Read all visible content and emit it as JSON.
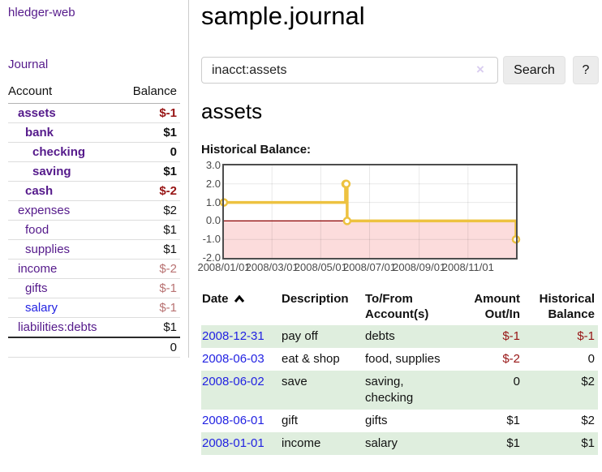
{
  "app": {
    "brand": "hledger-web"
  },
  "sidebar": {
    "journal_link": "Journal",
    "accounts": {
      "col_account": "Account",
      "col_balance": "Balance",
      "rows": [
        {
          "name": "assets",
          "indent": 1,
          "emph": true,
          "balance": "$-1",
          "neg": "strong"
        },
        {
          "name": "bank",
          "indent": 2,
          "emph": true,
          "balance": "$1",
          "neg": "none"
        },
        {
          "name": "checking",
          "indent": 3,
          "emph": true,
          "balance": "0",
          "neg": "none"
        },
        {
          "name": "saving",
          "indent": 3,
          "emph": true,
          "balance": "$1",
          "neg": "none"
        },
        {
          "name": "cash",
          "indent": 2,
          "emph": true,
          "balance": "$-2",
          "neg": "strong"
        },
        {
          "name": "expenses",
          "indent": 1,
          "emph": false,
          "balance": "$2",
          "neg": "none"
        },
        {
          "name": "food",
          "indent": 2,
          "emph": false,
          "balance": "$1",
          "neg": "none"
        },
        {
          "name": "supplies",
          "indent": 2,
          "emph": false,
          "balance": "$1",
          "neg": "none"
        },
        {
          "name": "income",
          "indent": 1,
          "emph": false,
          "balance": "$-2",
          "neg": "soft"
        },
        {
          "name": "gifts",
          "indent": 2,
          "emph": false,
          "balance": "$-1",
          "neg": "soft"
        },
        {
          "name": "salary",
          "indent": 2,
          "emph": false,
          "balance": "$-1",
          "neg": "soft",
          "link_color": "blue"
        },
        {
          "name": "liabilities:debts",
          "indent": 1,
          "emph": false,
          "balance": "$1",
          "neg": "none"
        }
      ],
      "total": "0"
    }
  },
  "main": {
    "title": "sample.journal",
    "search": {
      "value": "inacct:assets",
      "clear_icon": "×",
      "search_button": "Search",
      "help_button": "?"
    },
    "heading": "assets",
    "chart_label": "Historical Balance:"
  },
  "chart_data": {
    "type": "line",
    "title": "Historical Balance:",
    "step": true,
    "x_type": "date",
    "xlim": [
      "2008-01-01",
      "2008-12-31"
    ],
    "ylim": [
      -2,
      3
    ],
    "yticks": [
      {
        "y": 3,
        "label": "3.0"
      },
      {
        "y": 2,
        "label": "2.0"
      },
      {
        "y": 1,
        "label": "1.0"
      },
      {
        "y": 0,
        "label": "0.0"
      },
      {
        "y": -1,
        "label": "-1.0"
      },
      {
        "y": -2,
        "label": "-2.0"
      }
    ],
    "xticks": [
      {
        "x": "2008-01-01",
        "label": "2008/01/01"
      },
      {
        "x": "2008-03-01",
        "label": "2008/03/01"
      },
      {
        "x": "2008-05-01",
        "label": "2008/05/01"
      },
      {
        "x": "2008-07-01",
        "label": "2008/07/01"
      },
      {
        "x": "2008-09-01",
        "label": "2008/09/01"
      },
      {
        "x": "2008-11-01",
        "label": "2008/11/01"
      }
    ],
    "series": [
      {
        "name": "$",
        "color": "#edc240",
        "points": [
          {
            "x": "2008-01-01",
            "y": 1
          },
          {
            "x": "2008-06-01",
            "y": 2
          },
          {
            "x": "2008-06-02",
            "y": 2
          },
          {
            "x": "2008-06-03",
            "y": 0
          },
          {
            "x": "2008-12-31",
            "y": -1
          }
        ]
      }
    ],
    "legend_position": "top-right",
    "grid": true,
    "negative_region_fill": "#fcdcdc",
    "zero_line_color": "#8b0000",
    "border_color": "#4d4d4d"
  },
  "register": {
    "headers": [
      {
        "label": "Date",
        "sort": "asc",
        "align": "left"
      },
      {
        "label": "Description",
        "align": "left"
      },
      {
        "label": "To/From Account(s)",
        "align": "left"
      },
      {
        "label": "Amount Out/In",
        "align": "right"
      },
      {
        "label": "Historical Balance",
        "align": "right"
      }
    ],
    "rows": [
      {
        "date": "2008-12-31",
        "description": "pay off",
        "accounts": "debts",
        "amount": "$-1",
        "amount_neg": true,
        "balance": "$-1",
        "balance_neg": true
      },
      {
        "date": "2008-06-03",
        "description": "eat & shop",
        "accounts": "food, supplies",
        "amount": "$-2",
        "amount_neg": true,
        "balance": "0",
        "balance_neg": false
      },
      {
        "date": "2008-06-02",
        "description": "save",
        "accounts": "saving, checking",
        "amount": "0",
        "amount_neg": false,
        "balance": "$2",
        "balance_neg": false
      },
      {
        "date": "2008-06-01",
        "description": "gift",
        "accounts": "gifts",
        "amount": "$1",
        "amount_neg": false,
        "balance": "$2",
        "balance_neg": false
      },
      {
        "date": "2008-01-01",
        "description": "income",
        "accounts": "salary",
        "amount": "$1",
        "amount_neg": false,
        "balance": "$1",
        "balance_neg": false
      }
    ]
  },
  "colors": {
    "accent_purple": "#551a8b",
    "link_blue": "#2222e2",
    "negative_strong": "#971414",
    "negative_soft": "#b87272",
    "stripe_green": "#dfeede",
    "chart_line": "#edc240"
  }
}
